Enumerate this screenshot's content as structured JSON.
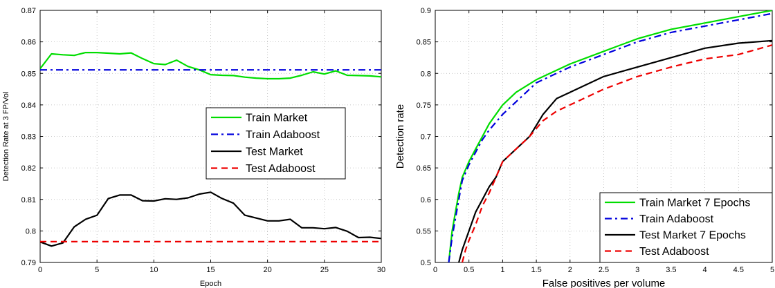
{
  "chart_data": [
    {
      "type": "line",
      "xlabel": "Epoch",
      "ylabel": "Detection Rate at 3 FP/Vol",
      "xlim": [
        0,
        30
      ],
      "ylim": [
        0.79,
        0.87
      ],
      "xticks": [
        0,
        5,
        10,
        15,
        20,
        25,
        30
      ],
      "yticks": [
        0.79,
        0.8,
        0.81,
        0.82,
        0.83,
        0.84,
        0.85,
        0.86,
        0.87
      ],
      "xtick_labels": [
        "0",
        "5",
        "10",
        "15",
        "20",
        "25",
        "30"
      ],
      "ytick_labels": [
        "0.79",
        "0.8",
        "0.81",
        "0.82",
        "0.83",
        "0.84",
        "0.85",
        "0.86",
        "0.87"
      ],
      "grid": true,
      "legend_position": "center-right",
      "series": [
        {
          "name": "Train Market",
          "color": "#00dd00",
          "dash": "solid",
          "x": [
            0,
            1,
            2,
            3,
            4,
            5,
            6,
            7,
            8,
            9,
            10,
            11,
            12,
            13,
            14,
            15,
            16,
            17,
            18,
            19,
            20,
            21,
            22,
            23,
            24,
            25,
            26,
            27,
            28,
            29,
            30
          ],
          "y": [
            0.8515,
            0.8562,
            0.8559,
            0.8557,
            0.8566,
            0.8566,
            0.8564,
            0.8562,
            0.8565,
            0.8547,
            0.8531,
            0.8528,
            0.8542,
            0.8522,
            0.8511,
            0.8496,
            0.8494,
            0.8493,
            0.8488,
            0.8485,
            0.8483,
            0.8483,
            0.8485,
            0.8494,
            0.8505,
            0.8498,
            0.8508,
            0.8494,
            0.8493,
            0.8492,
            0.8489
          ]
        },
        {
          "name": "Train Adaboost",
          "color": "#0000dd",
          "dash": "dashdot",
          "x": [
            0,
            30
          ],
          "y": [
            0.8511,
            0.8511
          ]
        },
        {
          "name": "Test Market",
          "color": "#000000",
          "dash": "solid",
          "x": [
            0,
            1,
            2,
            3,
            4,
            5,
            6,
            7,
            8,
            9,
            10,
            11,
            12,
            13,
            14,
            15,
            16,
            17,
            18,
            19,
            20,
            21,
            22,
            23,
            24,
            25,
            26,
            27,
            28,
            29,
            30
          ],
          "y": [
            0.7965,
            0.7952,
            0.7962,
            0.8013,
            0.8037,
            0.805,
            0.8103,
            0.8114,
            0.8114,
            0.8096,
            0.8095,
            0.8102,
            0.81,
            0.8105,
            0.8117,
            0.8123,
            0.8103,
            0.8088,
            0.805,
            0.8041,
            0.8032,
            0.8032,
            0.8037,
            0.801,
            0.801,
            0.8007,
            0.8011,
            0.7999,
            0.7979,
            0.798,
            0.7976
          ]
        },
        {
          "name": "Test Adaboost",
          "color": "#ee0000",
          "dash": "dashed",
          "x": [
            0,
            30
          ],
          "y": [
            0.7966,
            0.7966
          ]
        }
      ]
    },
    {
      "type": "line",
      "xlabel": "False positives per volume",
      "ylabel": "Detection rate",
      "xlim": [
        0,
        5
      ],
      "ylim": [
        0.5,
        0.9
      ],
      "xticks": [
        0,
        0.5,
        1,
        1.5,
        2,
        2.5,
        3,
        3.5,
        4,
        4.5,
        5
      ],
      "yticks": [
        0.5,
        0.55,
        0.6,
        0.65,
        0.7,
        0.75,
        0.8,
        0.85,
        0.9
      ],
      "xtick_labels": [
        "0",
        "0.5",
        "1",
        "1.5",
        "2",
        "2.5",
        "3",
        "3.5",
        "4",
        "4.5",
        "5"
      ],
      "ytick_labels": [
        "0.5",
        "0.55",
        "0.6",
        "0.65",
        "0.7",
        "0.75",
        "0.8",
        "0.85",
        "0.9"
      ],
      "grid": true,
      "legend_position": "bottom-right",
      "series": [
        {
          "name": "Train Market 7 Epochs",
          "color": "#00dd00",
          "dash": "solid",
          "x": [
            0.2,
            0.25,
            0.3,
            0.35,
            0.4,
            0.5,
            0.6,
            0.7,
            0.8,
            1.0,
            1.2,
            1.5,
            2.0,
            2.5,
            3.0,
            3.5,
            4.0,
            4.5,
            5.0
          ],
          "y": [
            0.5,
            0.55,
            0.58,
            0.61,
            0.635,
            0.66,
            0.68,
            0.7,
            0.72,
            0.75,
            0.77,
            0.79,
            0.815,
            0.835,
            0.855,
            0.87,
            0.88,
            0.89,
            0.9
          ]
        },
        {
          "name": "Train Adaboost",
          "color": "#0000dd",
          "dash": "dashdot",
          "x": [
            0.2,
            0.25,
            0.3,
            0.35,
            0.4,
            0.5,
            0.6,
            0.7,
            0.8,
            1.0,
            1.2,
            1.5,
            2.0,
            2.5,
            3.0,
            3.5,
            4.0,
            4.5,
            5.0
          ],
          "y": [
            0.5,
            0.54,
            0.57,
            0.6,
            0.63,
            0.655,
            0.675,
            0.695,
            0.71,
            0.735,
            0.755,
            0.785,
            0.81,
            0.83,
            0.85,
            0.865,
            0.875,
            0.885,
            0.895
          ]
        },
        {
          "name": "Test Market 7 Epochs",
          "color": "#000000",
          "dash": "solid",
          "x": [
            0.35,
            0.4,
            0.5,
            0.6,
            0.7,
            0.8,
            0.9,
            1.0,
            1.2,
            1.4,
            1.6,
            1.8,
            2.0,
            2.5,
            3.0,
            3.5,
            4.0,
            4.5,
            5.0
          ],
          "y": [
            0.5,
            0.52,
            0.55,
            0.58,
            0.6,
            0.62,
            0.635,
            0.66,
            0.68,
            0.7,
            0.735,
            0.76,
            0.77,
            0.795,
            0.81,
            0.825,
            0.84,
            0.848,
            0.852
          ]
        },
        {
          "name": "Test Adaboost",
          "color": "#ee0000",
          "dash": "dashed",
          "x": [
            0.4,
            0.45,
            0.5,
            0.6,
            0.7,
            0.8,
            0.9,
            1.0,
            1.2,
            1.4,
            1.6,
            1.8,
            2.0,
            2.5,
            3.0,
            3.5,
            4.0,
            4.5,
            5.0
          ],
          "y": [
            0.5,
            0.52,
            0.535,
            0.56,
            0.59,
            0.61,
            0.635,
            0.66,
            0.68,
            0.7,
            0.725,
            0.74,
            0.75,
            0.775,
            0.795,
            0.81,
            0.823,
            0.83,
            0.845
          ]
        }
      ]
    }
  ]
}
